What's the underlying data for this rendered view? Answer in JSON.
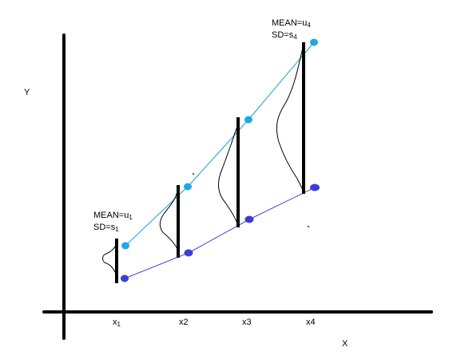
{
  "axes": {
    "y_label": "Y",
    "x_label": "X",
    "x_ticks": [
      {
        "text": "x",
        "sub": "1"
      },
      {
        "text": "x2",
        "sub": ""
      },
      {
        "text": "x3",
        "sub": ""
      },
      {
        "text": "x4",
        "sub": ""
      }
    ]
  },
  "annotations": {
    "first": {
      "mean_prefix": "MEAN=u",
      "mean_sub": "1",
      "sd_prefix": "SD=s",
      "sd_sub": "1"
    },
    "last": {
      "mean_prefix": "MEAN=u",
      "mean_sub": "4",
      "sd_prefix": "SD=s",
      "sd_sub": "4"
    }
  },
  "colors": {
    "axis": "#000000",
    "upper_line": "#1a9be0",
    "upper_point": "#1ea7e6",
    "lower_line": "#4a4adb",
    "lower_point": "#3c3cd6",
    "curve": "#000000"
  }
}
